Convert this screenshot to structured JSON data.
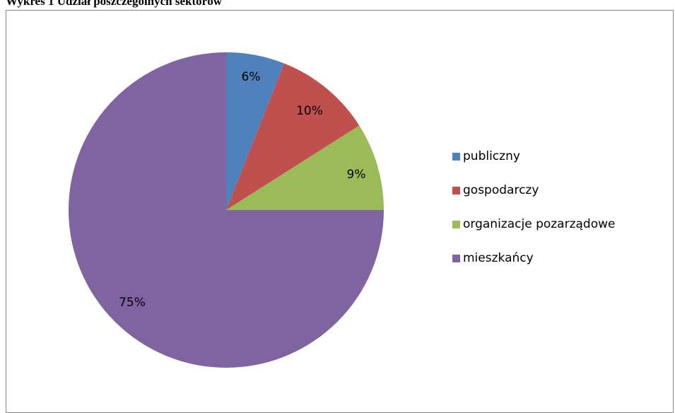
{
  "chart_data": {
    "type": "pie",
    "title": "Wykres 1 Udział poszczególnych sektorów",
    "categories": [
      "publiczny",
      "gospodarczy",
      "organizacje pozarządowe",
      "mieszkańcy"
    ],
    "values": [
      6,
      10,
      9,
      75
    ],
    "labels": [
      "6%",
      "10%",
      "9%",
      "75%"
    ],
    "colors": [
      "#4F81BD",
      "#C0504D",
      "#9BBB59",
      "#8064A2"
    ],
    "legend": "right"
  }
}
